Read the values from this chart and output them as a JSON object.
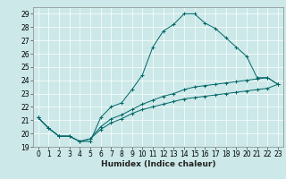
{
  "title": "",
  "xlabel": "Humidex (Indice chaleur)",
  "ylabel": "",
  "background_color": "#cce8e8",
  "grid_color": "#ffffff",
  "line_color": "#006666",
  "xlim": [
    -0.5,
    23.5
  ],
  "ylim": [
    19,
    29.5
  ],
  "xticks": [
    0,
    1,
    2,
    3,
    4,
    5,
    6,
    7,
    8,
    9,
    10,
    11,
    12,
    13,
    14,
    15,
    16,
    17,
    18,
    19,
    20,
    21,
    22,
    23
  ],
  "yticks": [
    19,
    20,
    21,
    22,
    23,
    24,
    25,
    26,
    27,
    28,
    29
  ],
  "curve1_x": [
    0,
    1,
    2,
    3,
    4,
    5,
    6,
    7,
    8,
    9,
    10,
    11,
    12,
    13,
    14,
    15,
    16,
    17,
    18,
    19,
    20,
    21,
    22,
    23
  ],
  "curve1_y": [
    21.2,
    20.4,
    19.8,
    19.8,
    19.4,
    19.4,
    21.2,
    22.0,
    22.3,
    23.3,
    24.4,
    26.5,
    27.7,
    28.2,
    29.0,
    29.0,
    28.3,
    27.9,
    27.2,
    26.5,
    25.8,
    24.2,
    24.2,
    23.7
  ],
  "curve2_x": [
    0,
    1,
    2,
    3,
    4,
    5,
    6,
    7,
    8,
    9,
    10,
    11,
    12,
    13,
    14,
    15,
    16,
    17,
    18,
    19,
    20,
    21,
    22,
    23
  ],
  "curve2_y": [
    21.2,
    20.4,
    19.8,
    19.8,
    19.4,
    19.6,
    20.5,
    21.1,
    21.4,
    21.8,
    22.2,
    22.5,
    22.8,
    23.0,
    23.3,
    23.5,
    23.6,
    23.7,
    23.8,
    23.9,
    24.0,
    24.1,
    24.2,
    23.7
  ],
  "curve3_x": [
    0,
    1,
    2,
    3,
    4,
    5,
    6,
    7,
    8,
    9,
    10,
    11,
    12,
    13,
    14,
    15,
    16,
    17,
    18,
    19,
    20,
    21,
    22,
    23
  ],
  "curve3_y": [
    21.2,
    20.4,
    19.8,
    19.8,
    19.4,
    19.6,
    20.3,
    20.8,
    21.1,
    21.5,
    21.8,
    22.0,
    22.2,
    22.4,
    22.6,
    22.7,
    22.8,
    22.9,
    23.0,
    23.1,
    23.2,
    23.3,
    23.4,
    23.7
  ],
  "tick_fontsize": 5.5,
  "xlabel_fontsize": 6.5
}
